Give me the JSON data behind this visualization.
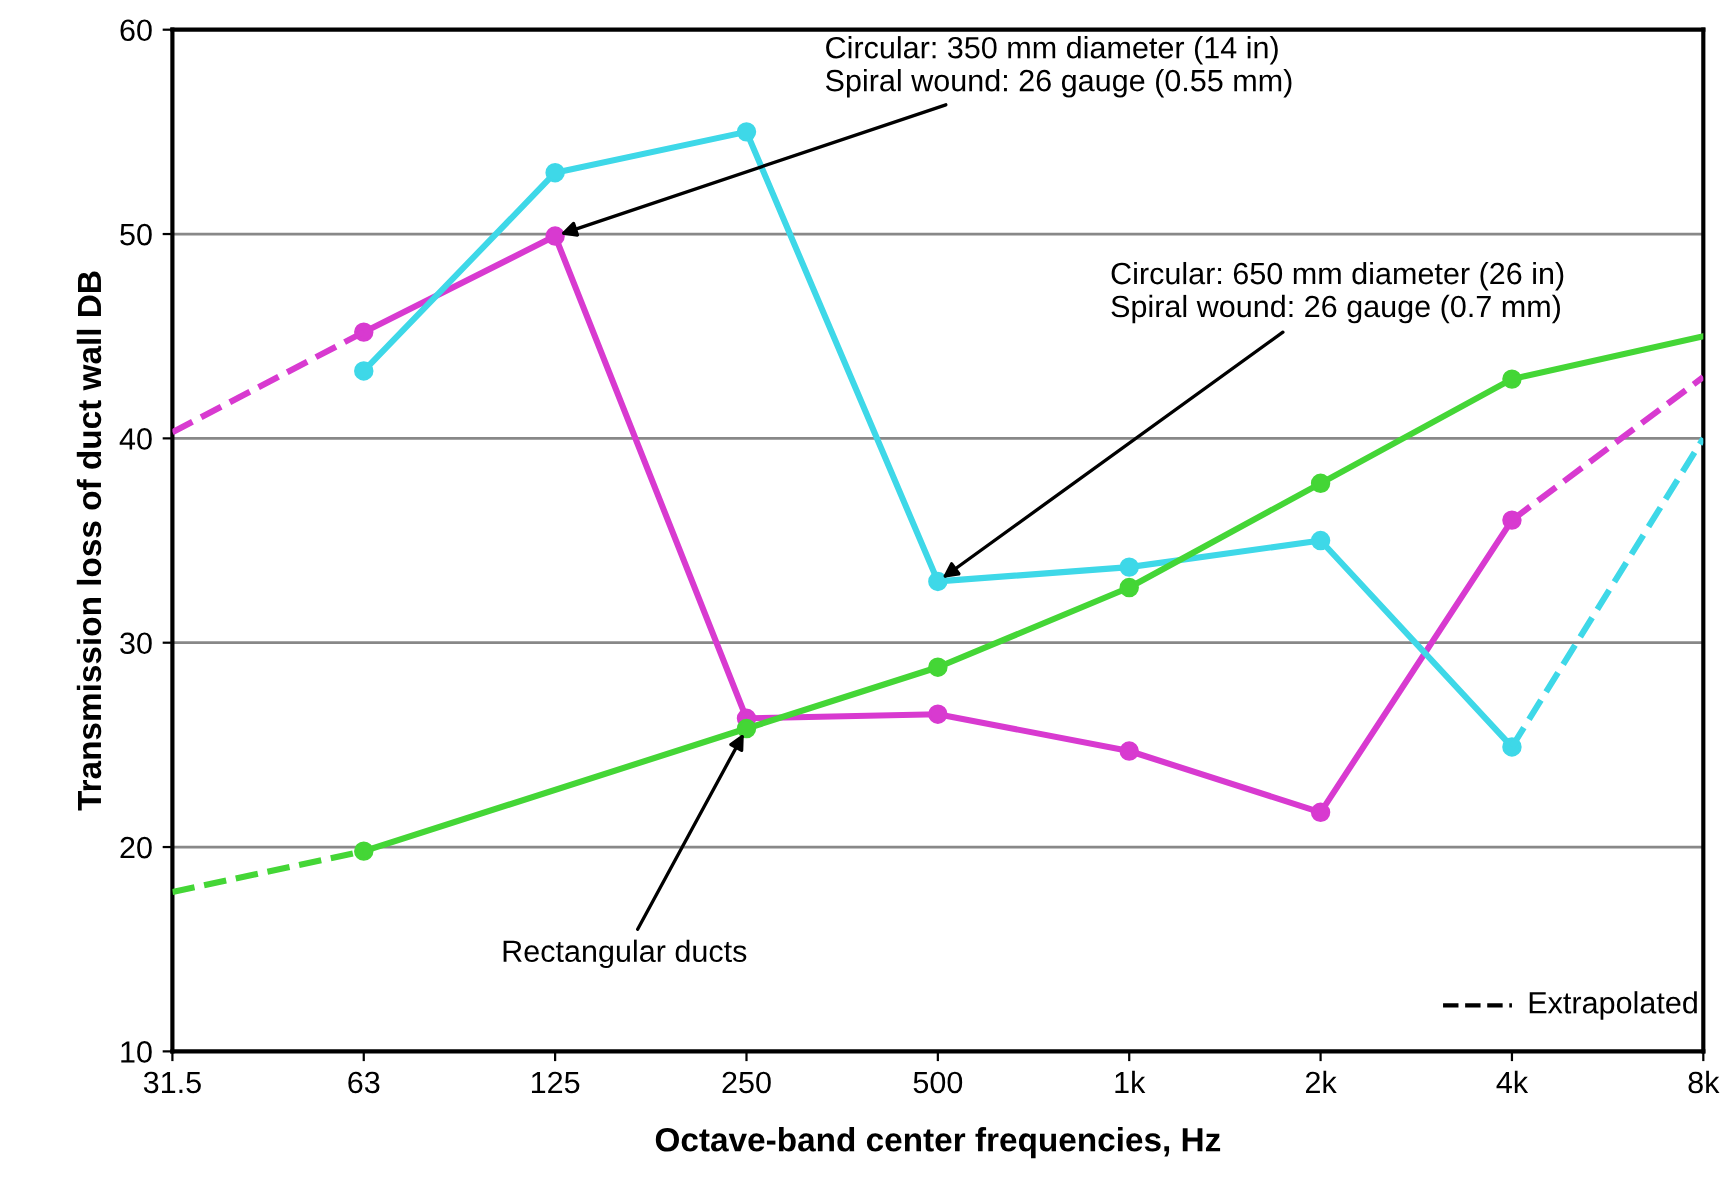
{
  "chart_data": {
    "type": "line",
    "xlabel": "Octave-band center frequencies, Hz",
    "ylabel": "Transmission loss of duct wall DB",
    "categories": [
      "31.5",
      "63",
      "125",
      "250",
      "500",
      "1k",
      "2k",
      "4k",
      "8k"
    ],
    "ylim": [
      10,
      60
    ],
    "yticks": [
      10,
      20,
      30,
      40,
      50,
      60
    ],
    "grid": "y",
    "series": [
      {
        "color": "#d83ad0",
        "marker": "circle",
        "line_style": "solid",
        "values": [
          null,
          45.2,
          49.9,
          26.3,
          26.5,
          24.7,
          21.7,
          36.0,
          null
        ]
      },
      {
        "color": "#d83ad0",
        "line_style": "dashed",
        "values": [
          40.3,
          45.2,
          null,
          null,
          null,
          null,
          null,
          null,
          null
        ]
      },
      {
        "color": "#d83ad0",
        "line_style": "dashed",
        "values": [
          null,
          null,
          null,
          null,
          null,
          null,
          null,
          36.0,
          43.0
        ]
      },
      {
        "color": "#3ed8e8",
        "marker": "circle",
        "line_style": "solid",
        "values": [
          null,
          43.3,
          53.0,
          55.0,
          33.0,
          33.7,
          35.0,
          24.9,
          null
        ]
      },
      {
        "color": "#3ed8e8",
        "line_style": "dashed",
        "values": [
          null,
          null,
          null,
          null,
          null,
          null,
          null,
          24.9,
          40.0
        ]
      },
      {
        "color": "#44d636",
        "marker": "circle",
        "line_style": "solid",
        "values": [
          null,
          19.8,
          null,
          25.8,
          28.8,
          32.7,
          37.8,
          42.9,
          null
        ]
      },
      {
        "color": "#44d636",
        "line_style": "solid",
        "values": [
          null,
          null,
          null,
          null,
          null,
          null,
          null,
          42.9,
          45.0
        ]
      },
      {
        "color": "#44d636",
        "line_style": "dashed",
        "values": [
          17.8,
          19.8,
          null,
          null,
          null,
          null,
          null,
          null,
          null
        ]
      }
    ],
    "annotations": [
      {
        "text": "Circular: 350 mm diameter (14 in)\nSpiral wound: 26 gauge (0.55 mm)",
        "x": "125",
        "y": 49.9
      },
      {
        "text": "Circular: 650 mm diameter (26 in)\nSpiral wound: 26 gauge (0.7 mm)",
        "x": "500",
        "y": 33.0
      },
      {
        "text": "Rectangular ducts",
        "x": "250",
        "y": 25.8
      },
      "Extrapolated"
    ]
  }
}
